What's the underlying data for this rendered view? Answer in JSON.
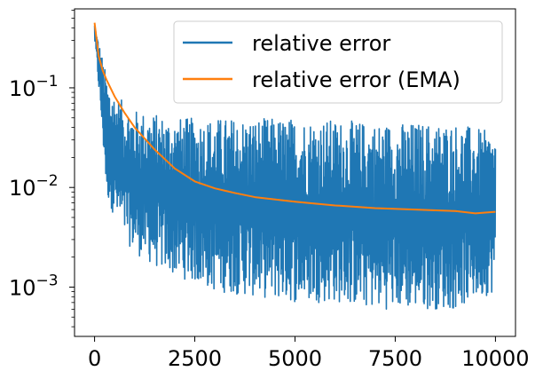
{
  "chart_data": {
    "type": "line",
    "yscale": "log",
    "xlim": [
      -500,
      10500
    ],
    "ylim": [
      0.00032,
      0.62
    ],
    "x_ticks": [
      0,
      2500,
      5000,
      7500,
      10000
    ],
    "x_tick_labels": [
      "0",
      "2500",
      "5000",
      "7500",
      "10000"
    ],
    "y_ticks": [
      0.001,
      0.01,
      0.1
    ],
    "y_tick_labels": [
      {
        "base": "10",
        "exp": "−3"
      },
      {
        "base": "10",
        "exp": "−2"
      },
      {
        "base": "10",
        "exp": "−1"
      }
    ],
    "legend_position": "top-right",
    "series": [
      {
        "name": "relative error",
        "color": "#1f77b4",
        "style": "noisy",
        "x": [
          0,
          100,
          200,
          300,
          500,
          750,
          1000,
          1500,
          2000,
          2500,
          3000,
          4000,
          5000,
          6000,
          7000,
          8000,
          9000,
          10000
        ],
        "upper": [
          0.45,
          0.3,
          0.2,
          0.13,
          0.09,
          0.07,
          0.06,
          0.055,
          0.05,
          0.05,
          0.05,
          0.05,
          0.05,
          0.048,
          0.045,
          0.045,
          0.045,
          0.035
        ],
        "lower": [
          0.3,
          0.1,
          0.03,
          0.008,
          0.005,
          0.003,
          0.0022,
          0.0016,
          0.0013,
          0.0011,
          0.0009,
          0.0008,
          0.0007,
          0.0007,
          0.0006,
          0.0006,
          0.0006,
          0.0009
        ]
      },
      {
        "name": "relative error (EMA)",
        "color": "#ff7f0e",
        "style": "smooth",
        "x": [
          0,
          100,
          200,
          300,
          500,
          750,
          1000,
          1500,
          2000,
          2500,
          3000,
          3500,
          4000,
          5000,
          6000,
          7000,
          8000,
          9000,
          9500,
          10000
        ],
        "y": [
          0.45,
          0.21,
          0.15,
          0.12,
          0.082,
          0.056,
          0.04,
          0.024,
          0.0155,
          0.0115,
          0.0098,
          0.0088,
          0.008,
          0.0072,
          0.0066,
          0.0062,
          0.006,
          0.0058,
          0.0055,
          0.0057
        ]
      }
    ]
  }
}
